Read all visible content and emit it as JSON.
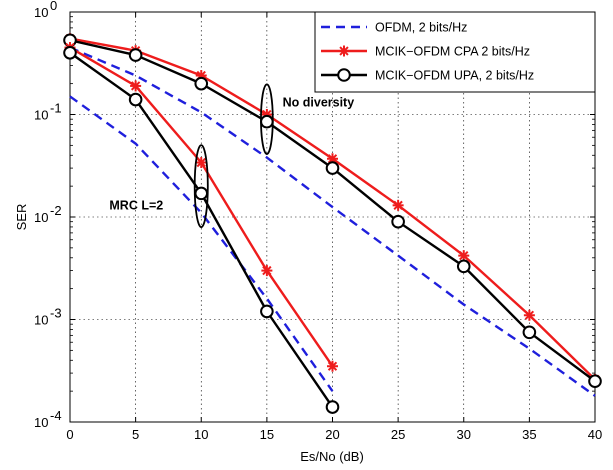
{
  "chart_data": {
    "type": "line",
    "title": "",
    "xlabel": "Es/No (dB)",
    "ylabel": "SER",
    "xlim": [
      0,
      40
    ],
    "ylim": [
      0.0001,
      1
    ],
    "yscale": "log",
    "grid": true,
    "legend_position": "top-right",
    "xticks": [
      0,
      5,
      10,
      15,
      20,
      25,
      30,
      35,
      40
    ],
    "yticks": [
      {
        "value": 1,
        "base": "10",
        "exp": "0"
      },
      {
        "value": 0.1,
        "base": "10",
        "exp": "-1"
      },
      {
        "value": 0.01,
        "base": "10",
        "exp": "-2"
      },
      {
        "value": 0.001,
        "base": "10",
        "exp": "-3"
      },
      {
        "value": 0.0001,
        "base": "10",
        "exp": "-4"
      }
    ],
    "series": [
      {
        "name": "OFDM, 2 bits/Hz",
        "color": "#1f1fdc",
        "dash": true,
        "marker": "none",
        "group": "no-diversity",
        "x": [
          0,
          5,
          10,
          15,
          20,
          25,
          30,
          35,
          40
        ],
        "y": [
          0.45,
          0.24,
          0.105,
          0.038,
          0.0125,
          0.0042,
          0.0014,
          0.00052,
          0.00018
        ]
      },
      {
        "name": "MCIK−OFDM CPA 2 bits/Hz",
        "color": "#ee1c1c",
        "dash": false,
        "marker": "star",
        "group": "no-diversity",
        "x": [
          0,
          5,
          10,
          15,
          20,
          25,
          30,
          35,
          40
        ],
        "y": [
          0.55,
          0.42,
          0.24,
          0.1,
          0.037,
          0.013,
          0.0042,
          0.0011,
          0.00026
        ]
      },
      {
        "name": "MCIK−OFDM UPA, 2 bits/Hz",
        "color": "#000000",
        "dash": false,
        "marker": "circle",
        "group": "no-diversity",
        "x": [
          0,
          5,
          10,
          15,
          20,
          25,
          30,
          35,
          40
        ],
        "y": [
          0.53,
          0.38,
          0.2,
          0.085,
          0.03,
          0.009,
          0.0033,
          0.00075,
          0.00025
        ]
      },
      {
        "name": "OFDM, 2 bits/Hz",
        "color": "#1f1fdc",
        "dash": true,
        "marker": "none",
        "group": "mrc",
        "x": [
          0,
          5,
          10,
          15,
          20
        ],
        "y": [
          0.15,
          0.052,
          0.011,
          0.0016,
          0.0002
        ]
      },
      {
        "name": "MCIK−OFDM CPA 2 bits/Hz",
        "color": "#ee1c1c",
        "dash": false,
        "marker": "star",
        "group": "mrc",
        "x": [
          0,
          5,
          10,
          15,
          20
        ],
        "y": [
          0.45,
          0.19,
          0.034,
          0.003,
          0.00035
        ]
      },
      {
        "name": "MCIK−OFDM UPA, 2 bits/Hz",
        "color": "#000000",
        "dash": false,
        "marker": "circle",
        "group": "mrc",
        "x": [
          0,
          5,
          10,
          15,
          20
        ],
        "y": [
          0.4,
          0.14,
          0.017,
          0.0012,
          0.00014
        ]
      }
    ],
    "legend": [
      {
        "label": "OFDM, 2 bits/Hz",
        "color": "#1f1fdc",
        "dash": true,
        "marker": "none"
      },
      {
        "label": "MCIK−OFDM CPA 2 bits/Hz",
        "color": "#ee1c1c",
        "dash": false,
        "marker": "star"
      },
      {
        "label": "MCIK−OFDM UPA, 2 bits/Hz",
        "color": "#000000",
        "dash": false,
        "marker": "circle"
      }
    ],
    "annotations": [
      {
        "text": "No diversity",
        "x": 16.2,
        "y": 0.12,
        "ellipse_center": [
          15,
          0.09
        ],
        "ellipse_rx_data": 0.45,
        "ellipse_log_half_decades": 0.34
      },
      {
        "text": "MRC L=2",
        "x": 3.0,
        "y": 0.0118,
        "ellipse_center": [
          10,
          0.02
        ],
        "ellipse_rx_data": 0.5,
        "ellipse_log_half_decades": 0.4
      }
    ]
  }
}
